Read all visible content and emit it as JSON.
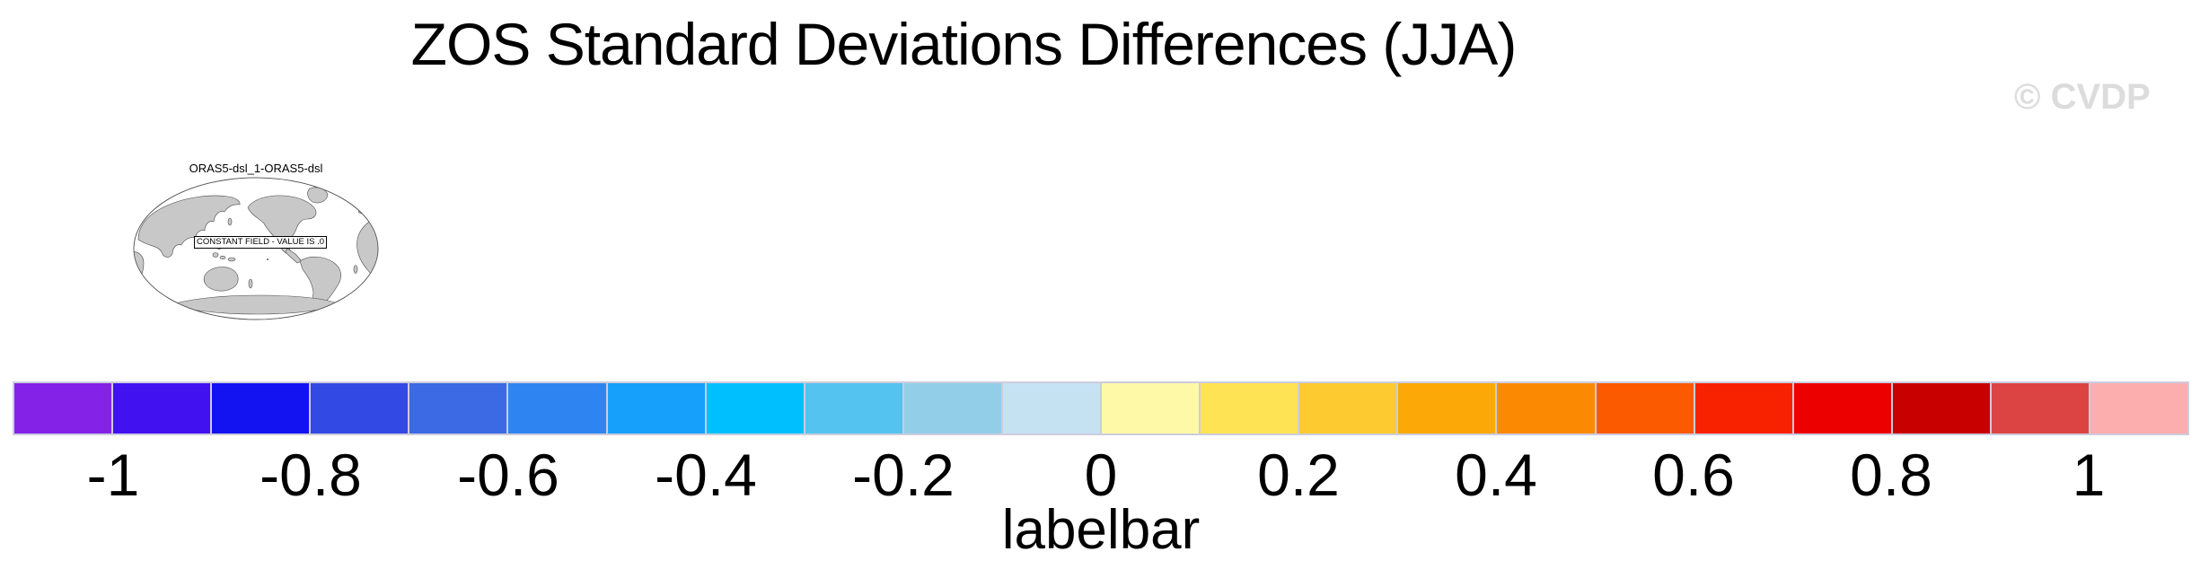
{
  "watermark": "© CVDP",
  "chart_data": {
    "type": "heatmap",
    "title": "ZOS Standard Deviations Differences (JJA)",
    "panels": [
      {
        "title": "ORAS5-dsl_1-ORAS5-dsl",
        "annotation": "CONSTANT FIELD - VALUE IS .0",
        "constant_value": 0
      }
    ],
    "colorbar": {
      "label": "labelbar",
      "tick_labels": [
        "-1",
        "-0.8",
        "-0.6",
        "-0.4",
        "-0.2",
        "0",
        "0.2",
        "0.4",
        "0.6",
        "0.8",
        "1"
      ],
      "tick_values": [
        -1,
        -0.8,
        -0.6,
        -0.4,
        -0.2,
        0,
        0.2,
        0.4,
        0.6,
        0.8,
        1
      ],
      "range": [
        -1.1,
        1.1
      ],
      "interval": 0.1,
      "n_boxes": 22,
      "colors": [
        "#8522E8",
        "#4211F0",
        "#1213F0",
        "#3249E4",
        "#3B6AE4",
        "#2E85F1",
        "#17A0FB",
        "#00BFFF",
        "#55C3EF",
        "#93CEE9",
        "#C5E2F3",
        "#FDF9A6",
        "#FEE354",
        "#FDCB2F",
        "#FCA806",
        "#FB8A02",
        "#FB5A00",
        "#F92200",
        "#EC0000",
        "#C80000",
        "#DC4444",
        "#FCAEAE"
      ],
      "border_color": "#CCCCDD",
      "legend_position": "bottom"
    },
    "map_style": {
      "land_color": "#C8C8C8",
      "coast_color": "#4A4A4A",
      "outline_color": "#555555"
    }
  }
}
